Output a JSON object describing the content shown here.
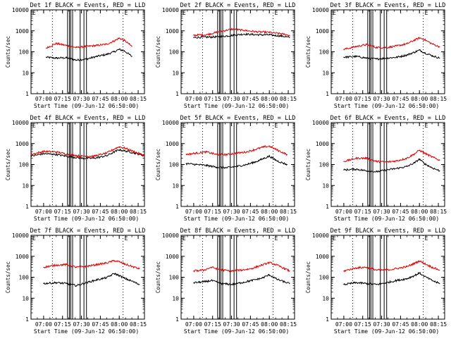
{
  "window": {
    "title": ""
  },
  "style": {
    "events_color": "#000000",
    "lld_color": "#e00000",
    "axis_color": "#000000"
  },
  "shared": {
    "xlabel": "Start Time (09-Jun-12 06:50:00)",
    "ylabel": "Counts/sec",
    "x_tick_labels": [
      "07:00",
      "07:15",
      "07:30",
      "07:45",
      "08:00",
      "08:15"
    ],
    "y_tick_labels": [
      "1",
      "10",
      "100",
      "1000"
    ],
    "y_tick_top": "10000",
    "corner_marker_left": "E",
    "corner_marker_right": "E",
    "flag_line_times": [
      "07:07",
      "08:03"
    ],
    "gap_line_times": [
      "07:19",
      "07:20.5",
      "07:21.5",
      "07:23",
      "07:29",
      "07:32",
      "07:34"
    ]
  },
  "chart_data": [
    {
      "type": "line",
      "title": "Det 1f BLACK = Events, RED = LLD",
      "xlabel": "Start Time (09-Jun-12 06:50:00)",
      "ylabel": "Counts/sec",
      "xlim": [
        "06:50",
        "08:20"
      ],
      "ylim": [
        1,
        10000
      ],
      "yscale": "log",
      "grid": false,
      "x": [
        "07:02",
        "07:10",
        "07:18",
        "07:26",
        "07:34",
        "07:42",
        "07:50",
        "07:56",
        "08:00",
        "08:04",
        "08:08",
        "08:10"
      ],
      "series": [
        {
          "name": "BLACK = Events",
          "values": [
            55,
            50,
            52,
            40,
            45,
            60,
            75,
            100,
            130,
            110,
            75,
            60
          ]
        },
        {
          "name": "RED = LLD",
          "values": [
            150,
            250,
            200,
            160,
            180,
            200,
            230,
            330,
            450,
            350,
            230,
            180
          ]
        }
      ]
    },
    {
      "type": "line",
      "title": "Det 2f BLACK = Events, RED = LLD",
      "xlabel": "Start Time (09-Jun-12 06:50:00)",
      "ylabel": "Counts/sec",
      "xlim": [
        "06:50",
        "08:20"
      ],
      "ylim": [
        1,
        10000
      ],
      "yscale": "log",
      "grid": false,
      "x": [
        "07:00",
        "07:10",
        "07:20",
        "07:30",
        "07:40",
        "07:50",
        "08:00",
        "08:10",
        "08:16"
      ],
      "series": [
        {
          "name": "BLACK = Events",
          "values": [
            480,
            500,
            520,
            600,
            700,
            650,
            640,
            560,
            480
          ]
        },
        {
          "name": "RED = LLD",
          "values": [
            620,
            650,
            900,
            1200,
            1050,
            900,
            840,
            720,
            600
          ]
        }
      ]
    },
    {
      "type": "line",
      "title": "Det 3f BLACK = Events, RED = LLD",
      "xlabel": "Start Time (09-Jun-12 06:50:00)",
      "ylabel": "Counts/sec",
      "xlim": [
        "06:50",
        "08:20"
      ],
      "ylim": [
        1,
        10000
      ],
      "yscale": "log",
      "grid": false,
      "x": [
        "07:00",
        "07:10",
        "07:18",
        "07:26",
        "07:34",
        "07:42",
        "07:50",
        "07:56",
        "08:00",
        "08:04",
        "08:10",
        "08:16"
      ],
      "series": [
        {
          "name": "BLACK = Events",
          "values": [
            55,
            60,
            50,
            45,
            50,
            55,
            70,
            95,
            120,
            90,
            65,
            50
          ]
        },
        {
          "name": "RED = LLD",
          "values": [
            130,
            180,
            220,
            160,
            160,
            190,
            240,
            360,
            460,
            380,
            240,
            170
          ]
        }
      ]
    },
    {
      "type": "line",
      "title": "Det 4f BLACK = Events, RED = LLD",
      "xlabel": "Start Time (09-Jun-12 06:50:00)",
      "ylabel": "Counts/sec",
      "xlim": [
        "06:50",
        "08:20"
      ],
      "ylim": [
        1,
        10000
      ],
      "yscale": "log",
      "grid": false,
      "x": [
        "06:50",
        "07:00",
        "07:10",
        "07:20",
        "07:30",
        "07:40",
        "07:50",
        "07:56",
        "08:00",
        "08:04",
        "08:10",
        "08:20"
      ],
      "series": [
        {
          "name": "BLACK = Events",
          "values": [
            250,
            330,
            300,
            240,
            200,
            200,
            260,
            400,
            500,
            450,
            380,
            260
          ]
        },
        {
          "name": "RED = LLD",
          "values": [
            300,
            420,
            400,
            300,
            250,
            250,
            350,
            550,
            700,
            620,
            450,
            270
          ]
        }
      ]
    },
    {
      "type": "line",
      "title": "Det 5f BLACK = Events, RED = LLD",
      "xlabel": "Start Time (09-Jun-12 06:50:00)",
      "ylabel": "Counts/sec",
      "xlim": [
        "06:50",
        "08:20"
      ],
      "ylim": [
        1,
        10000
      ],
      "yscale": "log",
      "grid": false,
      "x": [
        "06:54",
        "07:02",
        "07:10",
        "07:18",
        "07:26",
        "07:34",
        "07:42",
        "07:50",
        "07:56",
        "08:00",
        "08:06",
        "08:14"
      ],
      "series": [
        {
          "name": "BLACK = Events",
          "values": [
            110,
            100,
            90,
            75,
            70,
            80,
            100,
            140,
            200,
            250,
            150,
            100
          ]
        },
        {
          "name": "RED = LLD",
          "values": [
            300,
            350,
            400,
            300,
            300,
            350,
            400,
            550,
            700,
            750,
            500,
            300
          ]
        }
      ]
    },
    {
      "type": "line",
      "title": "Det 6f BLACK = Events, RED = LLD",
      "xlabel": "Start Time (09-Jun-12 06:50:00)",
      "ylabel": "Counts/sec",
      "xlim": [
        "06:50",
        "08:20"
      ],
      "ylim": [
        1,
        10000
      ],
      "yscale": "log",
      "grid": false,
      "x": [
        "07:00",
        "07:10",
        "07:18",
        "07:26",
        "07:34",
        "07:42",
        "07:50",
        "07:56",
        "08:00",
        "08:04",
        "08:10",
        "08:16"
      ],
      "series": [
        {
          "name": "BLACK = Events",
          "values": [
            55,
            60,
            50,
            45,
            55,
            65,
            80,
            120,
            180,
            110,
            70,
            50
          ]
        },
        {
          "name": "RED = LLD",
          "values": [
            140,
            200,
            200,
            140,
            130,
            150,
            200,
            320,
            480,
            350,
            230,
            160
          ]
        }
      ]
    },
    {
      "type": "line",
      "title": "Det 7f BLACK = Events, RED = LLD",
      "xlabel": "Start Time (09-Jun-12 06:50:00)",
      "ylabel": "Counts/sec",
      "xlim": [
        "06:50",
        "08:20"
      ],
      "ylim": [
        1,
        10000
      ],
      "yscale": "log",
      "grid": false,
      "x": [
        "07:00",
        "07:10",
        "07:18",
        "07:26",
        "07:34",
        "07:42",
        "07:50",
        "07:56",
        "08:00",
        "08:04",
        "08:10",
        "08:16"
      ],
      "series": [
        {
          "name": "BLACK = Events",
          "values": [
            50,
            55,
            50,
            40,
            55,
            75,
            95,
            150,
            120,
            90,
            65,
            45
          ]
        },
        {
          "name": "RED = LLD",
          "values": [
            300,
            380,
            400,
            300,
            330,
            400,
            480,
            620,
            550,
            430,
            330,
            250
          ]
        }
      ]
    },
    {
      "type": "line",
      "title": "Det 8f BLACK = Events, RED = LLD",
      "xlabel": "Start Time (09-Jun-12 06:50:00)",
      "ylabel": "Counts/sec",
      "xlim": [
        "06:50",
        "08:20"
      ],
      "ylim": [
        1,
        10000
      ],
      "yscale": "log",
      "grid": false,
      "x": [
        "07:00",
        "07:08",
        "07:14",
        "07:22",
        "07:30",
        "07:38",
        "07:46",
        "07:54",
        "08:00",
        "08:06",
        "08:12",
        "08:16"
      ],
      "series": [
        {
          "name": "BLACK = Events",
          "values": [
            55,
            60,
            70,
            50,
            45,
            55,
            70,
            90,
            130,
            80,
            60,
            50
          ]
        },
        {
          "name": "RED = LLD",
          "values": [
            200,
            220,
            300,
            220,
            200,
            220,
            260,
            380,
            500,
            380,
            260,
            200
          ]
        }
      ]
    },
    {
      "type": "line",
      "title": "Det 9f BLACK = Events, RED = LLD",
      "xlabel": "Start Time (09-Jun-12 06:50:00)",
      "ylabel": "Counts/sec",
      "xlim": [
        "06:50",
        "08:20"
      ],
      "ylim": [
        1,
        10000
      ],
      "yscale": "log",
      "grid": false,
      "x": [
        "07:00",
        "07:10",
        "07:18",
        "07:26",
        "07:34",
        "07:42",
        "07:50",
        "07:56",
        "08:00",
        "08:04",
        "08:10",
        "08:16"
      ],
      "series": [
        {
          "name": "BLACK = Events",
          "values": [
            45,
            55,
            50,
            45,
            55,
            70,
            85,
            120,
            160,
            110,
            70,
            50
          ]
        },
        {
          "name": "RED = LLD",
          "values": [
            200,
            280,
            300,
            220,
            220,
            260,
            320,
            460,
            600,
            450,
            300,
            220
          ]
        }
      ]
    }
  ]
}
